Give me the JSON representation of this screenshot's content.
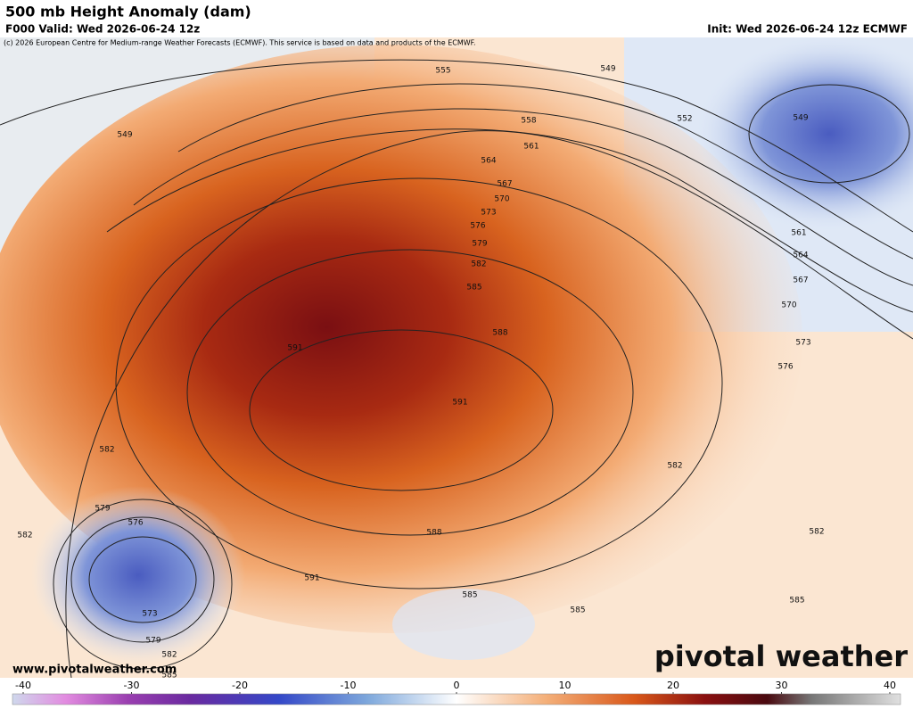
{
  "header": {
    "title": "500 mb Height Anomaly (dam)",
    "valid": "F000 Valid: Wed 2026-06-24 12z",
    "init": "Init: Wed 2026-06-24 12z ECMWF",
    "credit": "(c) 2026 European Centre for Medium-range Weather Forecasts (ECMWF). This service is based on data and products of the ECMWF."
  },
  "contour_labels": [
    555,
    549,
    549,
    558,
    552,
    549,
    561,
    564,
    567,
    570,
    573,
    576,
    579,
    582,
    585,
    561,
    564,
    567,
    588,
    570,
    591,
    573,
    576,
    591,
    582,
    582,
    579,
    576,
    582,
    588,
    582,
    591,
    573,
    585,
    585,
    585,
    579,
    582,
    585
  ],
  "footer": {
    "website": "www.pivotalweather.com",
    "logo": "pivotal weather"
  },
  "colorbar": {
    "ticks": [
      -40,
      -30,
      -20,
      -10,
      0,
      10,
      20,
      30,
      40
    ]
  }
}
